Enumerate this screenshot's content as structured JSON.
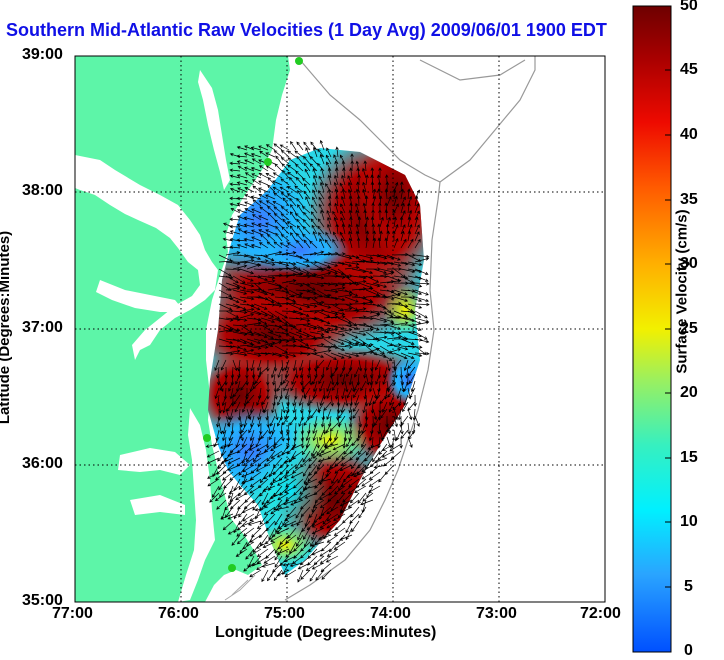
{
  "title": "Southern Mid-Atlantic Raw Velocities (1 Day Avg) 2009/06/01 1900 EDT",
  "xlabel": "Longitude (Degrees:Minutes)",
  "ylabel": "Latitude (Degrees:Minutes)",
  "x_ticks": [
    "77:00",
    "76:00",
    "75:00",
    "74:00",
    "73:00",
    "72:00"
  ],
  "y_ticks": [
    "39:00",
    "38:00",
    "37:00",
    "36:00",
    "35:00"
  ],
  "colorbar": {
    "label": "Surface Velocity (cm/s)",
    "ticks": [
      "50",
      "45",
      "40",
      "35",
      "30",
      "25",
      "20",
      "15",
      "10",
      "5",
      "0"
    ],
    "min": 0,
    "max": 50
  },
  "colors": {
    "land": "#5df5a8",
    "title": "#1010e6",
    "arrows": "#000000",
    "gridlines": "#000000"
  },
  "map": {
    "lon_range": [
      -77.0,
      -72.0
    ],
    "lat_range": [
      35.0,
      39.0
    ],
    "land_stations_color": "#22cc22"
  }
}
